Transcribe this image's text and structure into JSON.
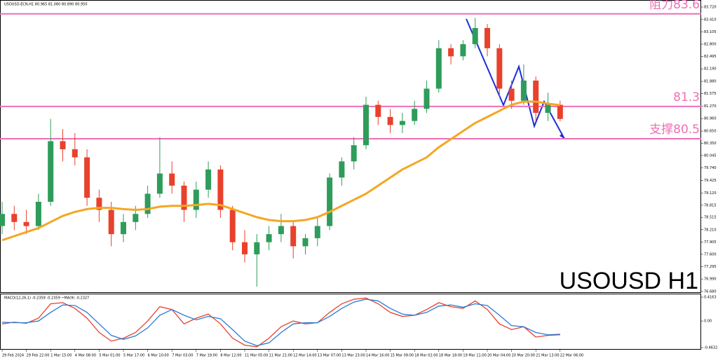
{
  "chart_data": {
    "type": "candlestick",
    "title": "USOUSD-ECN,H1  80.965 81.060 80.890 80.950",
    "watermark": "USOUSD H1",
    "categories": [
      "29 Feb 2024",
      null,
      "29 Feb 22:00",
      null,
      "1 Mar 15:00",
      null,
      "4 Mar 08:00",
      null,
      "5 Mar 01:00",
      null,
      "5 Mar 17:00",
      null,
      "6 Mar 10:00",
      null,
      "7 Mar 03:00",
      null,
      "7 Mar 19:00",
      null,
      "8 Mar 12:00",
      null,
      "11 Mar 05:00",
      null,
      "11 Mar 21:00",
      null,
      "12 Mar 14:00",
      null,
      "13 Mar 07:00",
      null,
      "13 Mar 23:00",
      null,
      "14 Mar 16:00",
      null,
      "15 Mar 09:00",
      null,
      "18 Mar 02:00",
      null,
      "18 Mar 18:00",
      null,
      "19 Mar 11:00",
      null,
      "20 Mar 04:00",
      null,
      "20 Mar 20:00",
      null,
      "21 Mar 13:00",
      null,
      "22 Mar 06:00"
    ],
    "ohlc": [
      [
        78.3,
        78.9,
        78.1,
        78.6
      ],
      [
        78.6,
        78.8,
        78.2,
        78.4
      ],
      [
        78.4,
        78.7,
        78.1,
        78.3
      ],
      [
        78.3,
        79.1,
        78.2,
        78.9
      ],
      [
        78.9,
        80.95,
        78.8,
        80.4
      ],
      [
        80.4,
        80.7,
        79.9,
        80.2
      ],
      [
        80.2,
        80.6,
        79.8,
        80.0
      ],
      [
        80.0,
        80.2,
        78.8,
        79.0
      ],
      [
        79.0,
        79.2,
        78.4,
        78.7
      ],
      [
        78.7,
        78.9,
        77.8,
        78.1
      ],
      [
        78.1,
        78.6,
        77.9,
        78.4
      ],
      [
        78.4,
        78.8,
        78.2,
        78.6
      ],
      [
        78.6,
        79.3,
        78.5,
        79.1
      ],
      [
        79.1,
        80.5,
        79.0,
        79.6
      ],
      [
        79.6,
        79.9,
        79.1,
        79.3
      ],
      [
        79.3,
        79.4,
        78.4,
        78.7
      ],
      [
        78.7,
        79.4,
        78.5,
        79.2
      ],
      [
        79.2,
        79.9,
        79.0,
        79.7
      ],
      [
        79.7,
        79.8,
        78.5,
        78.7
      ],
      [
        78.7,
        78.8,
        77.7,
        77.9
      ],
      [
        77.9,
        78.2,
        77.4,
        77.6
      ],
      [
        77.6,
        78.1,
        76.8,
        77.9
      ],
      [
        77.9,
        78.3,
        77.7,
        78.1
      ],
      [
        78.1,
        78.6,
        77.9,
        78.3
      ],
      [
        78.3,
        78.4,
        77.5,
        77.8
      ],
      [
        77.8,
        78.1,
        77.6,
        78.0
      ],
      [
        78.0,
        78.5,
        77.8,
        78.3
      ],
      [
        78.3,
        79.6,
        78.2,
        79.5
      ],
      [
        79.5,
        80.0,
        79.3,
        79.9
      ],
      [
        79.9,
        80.5,
        79.7,
        80.3
      ],
      [
        80.3,
        81.5,
        80.2,
        81.3
      ],
      [
        81.3,
        81.4,
        80.8,
        81.0
      ],
      [
        81.0,
        81.2,
        80.6,
        80.8
      ],
      [
        80.8,
        81.1,
        80.6,
        80.9
      ],
      [
        80.9,
        81.4,
        80.8,
        81.2
      ],
      [
        81.2,
        81.9,
        81.1,
        81.7
      ],
      [
        81.7,
        82.9,
        81.6,
        82.7
      ],
      [
        82.7,
        82.8,
        82.3,
        82.5
      ],
      [
        82.5,
        82.9,
        82.4,
        82.8
      ],
      [
        82.8,
        83.45,
        82.7,
        83.2
      ],
      [
        83.2,
        83.3,
        82.5,
        82.7
      ],
      [
        82.7,
        82.8,
        81.5,
        81.7
      ],
      [
        81.7,
        81.9,
        81.2,
        81.4
      ],
      [
        81.4,
        82.3,
        81.3,
        81.9
      ],
      [
        81.9,
        82.0,
        80.9,
        81.1
      ],
      [
        81.1,
        81.6,
        80.9,
        81.3
      ],
      [
        81.3,
        81.4,
        80.89,
        80.95
      ]
    ],
    "up_color": "#2e9c5a",
    "down_color": "#e8412c",
    "ma": {
      "color": "#f5a623",
      "values": [
        77.95,
        78.05,
        78.15,
        78.25,
        78.4,
        78.55,
        78.65,
        78.72,
        78.75,
        78.75,
        78.72,
        78.7,
        78.72,
        78.78,
        78.8,
        78.8,
        78.82,
        78.85,
        78.82,
        78.72,
        78.62,
        78.52,
        78.45,
        78.42,
        78.42,
        78.45,
        78.52,
        78.65,
        78.8,
        78.95,
        79.1,
        79.3,
        79.5,
        79.7,
        79.85,
        80.0,
        80.25,
        80.45,
        80.65,
        80.85,
        81.0,
        81.15,
        81.3,
        81.38,
        81.38,
        81.33,
        81.29
      ]
    },
    "levels": [
      {
        "value": 83.55,
        "label": "阻力83.6"
      },
      {
        "value": 81.26,
        "label": "81.3"
      },
      {
        "value": 80.46,
        "label": "支撑80.5"
      }
    ],
    "level_color": "#ee6fb5",
    "ylim": [
      76.68,
      83.72
    ],
    "yticks": [
      {
        "value": 83.72,
        "label": "83.720"
      },
      {
        "value": 83.41,
        "label": "83.410"
      },
      {
        "value": 83.105,
        "label": "83.105"
      },
      {
        "value": 82.8,
        "label": "82.800"
      },
      {
        "value": 82.495,
        "label": "82.495"
      },
      {
        "value": 82.19,
        "label": "82.190"
      },
      {
        "value": 81.88,
        "label": "81.880"
      },
      {
        "value": 81.575,
        "label": "81.575"
      },
      {
        "value": 81.27,
        "label": "81.270"
      },
      {
        "value": 80.96,
        "label": "80.960"
      },
      {
        "value": 80.65,
        "label": "80.650"
      },
      {
        "value": 80.35,
        "label": "80.350"
      },
      {
        "value": 80.045,
        "label": "80.045"
      },
      {
        "value": 79.74,
        "label": "79.740"
      },
      {
        "value": 79.425,
        "label": "79.425"
      },
      {
        "value": 79.12,
        "label": "79.120"
      },
      {
        "value": 78.815,
        "label": "78.815"
      },
      {
        "value": 78.515,
        "label": "78.515"
      },
      {
        "value": 78.21,
        "label": "78.210"
      },
      {
        "value": 77.905,
        "label": "77.905"
      },
      {
        "value": 77.6,
        "label": "77.600"
      },
      {
        "value": 77.295,
        "label": "77.295"
      },
      {
        "value": 76.99,
        "label": "76.990"
      },
      {
        "value": 76.68,
        "label": "76.680"
      }
    ],
    "macd": {
      "title": "MACD(12,26,1) -0.2359 -0.2359 ~MA(9) -0.2327",
      "ylim": [
        -0.4632,
        0.4163
      ],
      "yticks": [
        0.4163,
        {
          "value": 0,
          "label": "0.00"
        },
        -0.4632
      ],
      "series": [
        {
          "name": "MACD",
          "color": "#e8412c",
          "values": [
            -0.05,
            -0.02,
            -0.04,
            0.05,
            0.3,
            0.32,
            0.22,
            0.05,
            -0.2,
            -0.35,
            -0.3,
            -0.2,
            0.0,
            0.25,
            0.2,
            -0.05,
            0.05,
            0.12,
            -0.05,
            -0.3,
            -0.42,
            -0.45,
            -0.3,
            -0.1,
            0.0,
            -0.05,
            -0.03,
            0.15,
            0.3,
            0.38,
            0.4,
            0.3,
            0.15,
            0.08,
            0.1,
            0.2,
            0.32,
            0.25,
            0.22,
            0.35,
            0.2,
            -0.05,
            -0.15,
            -0.1,
            -0.28,
            -0.25,
            -0.24
          ]
        },
        {
          "name": "MA(9)",
          "color": "#2a7bd8",
          "values": [
            -0.02,
            -0.03,
            -0.03,
            0.0,
            0.15,
            0.28,
            0.27,
            0.15,
            -0.05,
            -0.25,
            -0.32,
            -0.26,
            -0.12,
            0.1,
            0.2,
            0.1,
            0.02,
            0.08,
            0.04,
            -0.15,
            -0.35,
            -0.43,
            -0.38,
            -0.2,
            -0.05,
            -0.03,
            -0.03,
            0.08,
            0.22,
            0.33,
            0.38,
            0.35,
            0.22,
            0.12,
            0.1,
            0.15,
            0.26,
            0.28,
            0.24,
            0.3,
            0.27,
            0.1,
            -0.08,
            -0.1,
            -0.2,
            -0.24,
            -0.23
          ]
        }
      ]
    }
  }
}
